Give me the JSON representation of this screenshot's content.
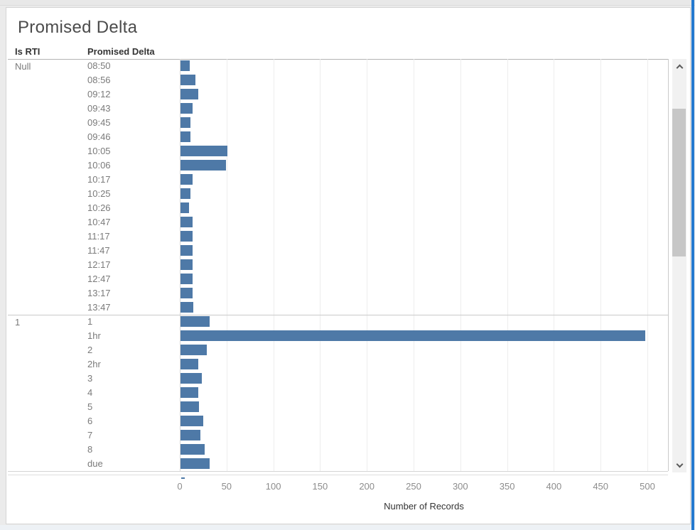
{
  "window": {
    "accent_color": "#2379cf"
  },
  "panel": {
    "title": "Promised Delta"
  },
  "table": {
    "col1_header": "Is RTI",
    "col2_header": "Promised Delta"
  },
  "axis": {
    "label": "Number of Records"
  },
  "colors": {
    "bar": "#4e79a7"
  },
  "chart_data": {
    "type": "bar",
    "orientation": "horizontal",
    "title": "Promised Delta",
    "xlabel": "Number of Records",
    "xlim": [
      0,
      500
    ],
    "x_ticks": [
      0,
      50,
      100,
      150,
      200,
      250,
      300,
      350,
      400,
      450,
      500
    ],
    "grid": true,
    "row_headers": [
      "Is RTI",
      "Promised Delta"
    ],
    "groups": [
      {
        "is_rti": "Null",
        "rows": [
          {
            "label": "08:50",
            "value": 10
          },
          {
            "label": "08:56",
            "value": 16
          },
          {
            "label": "09:12",
            "value": 19
          },
          {
            "label": "09:43",
            "value": 13
          },
          {
            "label": "09:45",
            "value": 11
          },
          {
            "label": "09:46",
            "value": 11
          },
          {
            "label": "10:05",
            "value": 50
          },
          {
            "label": "10:06",
            "value": 49
          },
          {
            "label": "10:17",
            "value": 13
          },
          {
            "label": "10:25",
            "value": 11
          },
          {
            "label": "10:26",
            "value": 9
          },
          {
            "label": "10:47",
            "value": 13
          },
          {
            "label": "11:17",
            "value": 13
          },
          {
            "label": "11:47",
            "value": 13
          },
          {
            "label": "12:17",
            "value": 13
          },
          {
            "label": "12:47",
            "value": 13
          },
          {
            "label": "13:17",
            "value": 13
          },
          {
            "label": "13:47",
            "value": 14
          }
        ]
      },
      {
        "is_rti": "1",
        "rows": [
          {
            "label": "1",
            "value": 31
          },
          {
            "label": "1hr",
            "value": 497
          },
          {
            "label": "2",
            "value": 28
          },
          {
            "label": "2hr",
            "value": 19
          },
          {
            "label": "3",
            "value": 23
          },
          {
            "label": "4",
            "value": 19
          },
          {
            "label": "5",
            "value": 20
          },
          {
            "label": "6",
            "value": 24
          },
          {
            "label": "7",
            "value": 21
          },
          {
            "label": "8",
            "value": 26
          },
          {
            "label": "due",
            "value": 31
          }
        ]
      }
    ]
  }
}
